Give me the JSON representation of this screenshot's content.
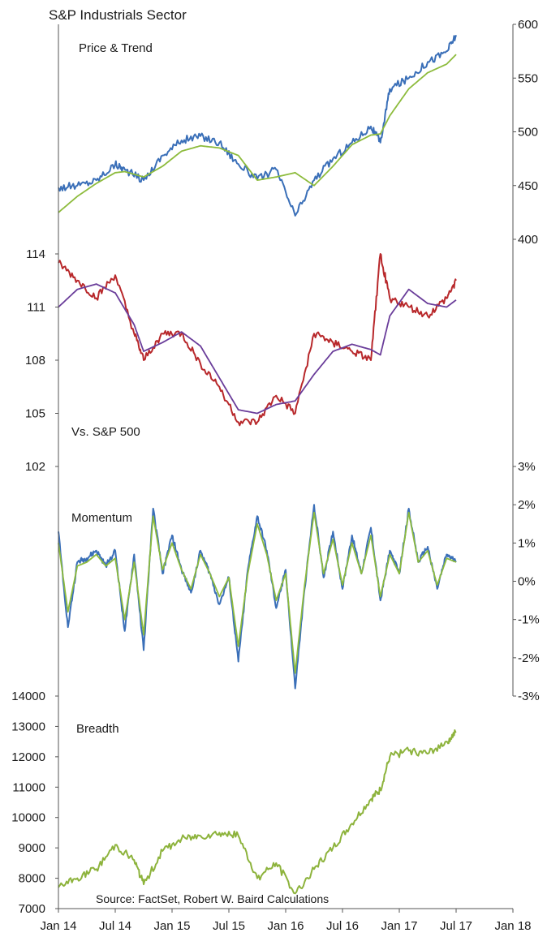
{
  "title": "S&P Industrials Sector",
  "source": "Source: FactSet, Robert W. Baird Calculations",
  "colors": {
    "price": "#3a6fb8",
    "trend": "#8dbb3c",
    "relative": "#b8282b",
    "relative_trend": "#6a3d9a",
    "momentum_fast": "#3a6fb8",
    "momentum_slow": "#8dbb3c",
    "breadth": "#8db33c",
    "axis": "#555555"
  },
  "chart_data": [
    {
      "type": "line",
      "panel": "price",
      "label": "Price & Trend",
      "y_axis": "right",
      "ylim": [
        400,
        600
      ],
      "yticks": [
        "400",
        "450",
        "500",
        "550",
        "600"
      ],
      "x": [
        "2014-01",
        "2014-03",
        "2014-05",
        "2014-07",
        "2014-08",
        "2014-10",
        "2014-12",
        "2015-02",
        "2015-04",
        "2015-06",
        "2015-08",
        "2015-10",
        "2015-12",
        "2016-02",
        "2016-04",
        "2016-06",
        "2016-08",
        "2016-10",
        "2016-11",
        "2016-12",
        "2017-02",
        "2017-04",
        "2017-06",
        "2017-07"
      ],
      "series": [
        {
          "role": "price",
          "values": [
            448,
            450,
            455,
            470,
            465,
            455,
            478,
            492,
            496,
            490,
            470,
            456,
            465,
            422,
            455,
            475,
            490,
            505,
            490,
            540,
            550,
            565,
            575,
            590
          ]
        },
        {
          "role": "trend",
          "values": [
            425,
            440,
            452,
            462,
            463,
            458,
            468,
            482,
            487,
            485,
            478,
            455,
            458,
            462,
            450,
            468,
            488,
            497,
            498,
            515,
            540,
            555,
            563,
            572
          ]
        }
      ]
    },
    {
      "type": "line",
      "panel": "relative",
      "label": "Vs. S&P 500",
      "y_axis": "left",
      "ylim": [
        102,
        114
      ],
      "yticks": [
        "102",
        "105",
        "108",
        "111",
        "114"
      ],
      "x": [
        "2014-01",
        "2014-03",
        "2014-05",
        "2014-07",
        "2014-09",
        "2014-10",
        "2014-12",
        "2015-02",
        "2015-04",
        "2015-06",
        "2015-08",
        "2015-10",
        "2015-12",
        "2016-02",
        "2016-04",
        "2016-06",
        "2016-08",
        "2016-10",
        "2016-11",
        "2016-12",
        "2017-02",
        "2017-04",
        "2017-06",
        "2017-07"
      ],
      "series": [
        {
          "role": "relative",
          "values": [
            113.5,
            112.5,
            111.5,
            112.8,
            109.5,
            108,
            109.5,
            109.5,
            107.8,
            106.5,
            104.5,
            104.5,
            106,
            105,
            109.5,
            109,
            108.5,
            108,
            114,
            111.5,
            111,
            110.5,
            111.5,
            112.5
          ]
        },
        {
          "role": "relative_trend",
          "values": [
            111,
            112,
            112.3,
            111.8,
            110,
            108.5,
            109,
            109.6,
            108.8,
            107,
            105.2,
            105,
            105.5,
            105.7,
            107.2,
            108.5,
            108.9,
            108.6,
            108.3,
            110.5,
            112,
            111.2,
            111,
            111.4
          ]
        }
      ]
    },
    {
      "type": "line",
      "panel": "momentum",
      "label": "Momentum",
      "y_axis": "right",
      "ylim": [
        -3,
        3
      ],
      "yticks": [
        "-3%",
        "-2%",
        "-1%",
        "0%",
        "1%",
        "2%",
        "3%"
      ],
      "x": [
        "2014-01",
        "2014-02",
        "2014-03",
        "2014-04",
        "2014-05",
        "2014-06",
        "2014-07",
        "2014-08",
        "2014-09",
        "2014-10",
        "2014-11",
        "2014-12",
        "2015-01",
        "2015-02",
        "2015-03",
        "2015-04",
        "2015-05",
        "2015-06",
        "2015-07",
        "2015-08",
        "2015-09",
        "2015-10",
        "2015-11",
        "2015-12",
        "2016-01",
        "2016-02",
        "2016-03",
        "2016-04",
        "2016-05",
        "2016-06",
        "2016-07",
        "2016-08",
        "2016-09",
        "2016-10",
        "2016-11",
        "2016-12",
        "2017-01",
        "2017-02",
        "2017-03",
        "2017-04",
        "2017-05",
        "2017-06",
        "2017-07"
      ],
      "series": [
        {
          "role": "momentum_fast",
          "values": [
            1.3,
            -1.2,
            0.5,
            0.6,
            0.8,
            0.4,
            0.8,
            -1.3,
            0.7,
            -1.8,
            1.9,
            0.2,
            1.2,
            0.3,
            -0.3,
            0.8,
            0.2,
            -0.6,
            0.1,
            -2.1,
            0.3,
            1.7,
            0.8,
            -0.7,
            0.3,
            -2.8,
            -0.2,
            2.0,
            0.1,
            1.3,
            -0.2,
            1.2,
            0.2,
            1.4,
            -0.5,
            0.8,
            0.2,
            1.9,
            0.5,
            0.9,
            -0.2,
            0.7,
            0.5
          ]
        },
        {
          "role": "momentum_slow",
          "values": [
            1.0,
            -0.8,
            0.4,
            0.5,
            0.7,
            0.4,
            0.6,
            -1.0,
            0.5,
            -1.4,
            1.7,
            0.3,
            1.0,
            0.3,
            -0.2,
            0.7,
            0.2,
            -0.4,
            0.1,
            -1.7,
            0.2,
            1.5,
            0.7,
            -0.5,
            0.2,
            -2.4,
            -0.1,
            1.8,
            0.2,
            1.1,
            -0.1,
            1.0,
            0.2,
            1.2,
            -0.4,
            0.7,
            0.2,
            1.8,
            0.5,
            0.8,
            -0.1,
            0.6,
            0.5
          ]
        }
      ]
    },
    {
      "type": "line",
      "panel": "breadth",
      "label": "Breadth",
      "y_axis": "left",
      "ylim": [
        7000,
        14000
      ],
      "yticks": [
        "7000",
        "8000",
        "9000",
        "10000",
        "11000",
        "12000",
        "13000",
        "14000"
      ],
      "x": [
        "2014-01",
        "2014-03",
        "2014-05",
        "2014-07",
        "2014-09",
        "2014-10",
        "2014-12",
        "2015-02",
        "2015-04",
        "2015-06",
        "2015-08",
        "2015-10",
        "2015-12",
        "2016-02",
        "2016-04",
        "2016-06",
        "2016-08",
        "2016-10",
        "2016-11",
        "2016-12",
        "2017-02",
        "2017-04",
        "2017-06",
        "2017-07"
      ],
      "series": [
        {
          "role": "breadth",
          "values": [
            7700,
            8000,
            8300,
            9100,
            8600,
            7800,
            8900,
            9300,
            9400,
            9500,
            9400,
            8000,
            8500,
            7500,
            8300,
            9000,
            9800,
            10600,
            10900,
            12000,
            12200,
            12100,
            12500,
            12800
          ]
        }
      ]
    }
  ],
  "x_axis": {
    "min": "2014-01",
    "max": "2018-01",
    "ticks": [
      {
        "date": "2014-01",
        "label": "Jan 14"
      },
      {
        "date": "2014-07",
        "label": "Jul 14"
      },
      {
        "date": "2015-01",
        "label": "Jan 15"
      },
      {
        "date": "2015-07",
        "label": "Jul 15"
      },
      {
        "date": "2016-01",
        "label": "Jan 16"
      },
      {
        "date": "2016-07",
        "label": "Jul 16"
      },
      {
        "date": "2017-01",
        "label": "Jan 17"
      },
      {
        "date": "2017-07",
        "label": "Jul 17"
      },
      {
        "date": "2018-01",
        "label": "Jan 18"
      }
    ]
  }
}
